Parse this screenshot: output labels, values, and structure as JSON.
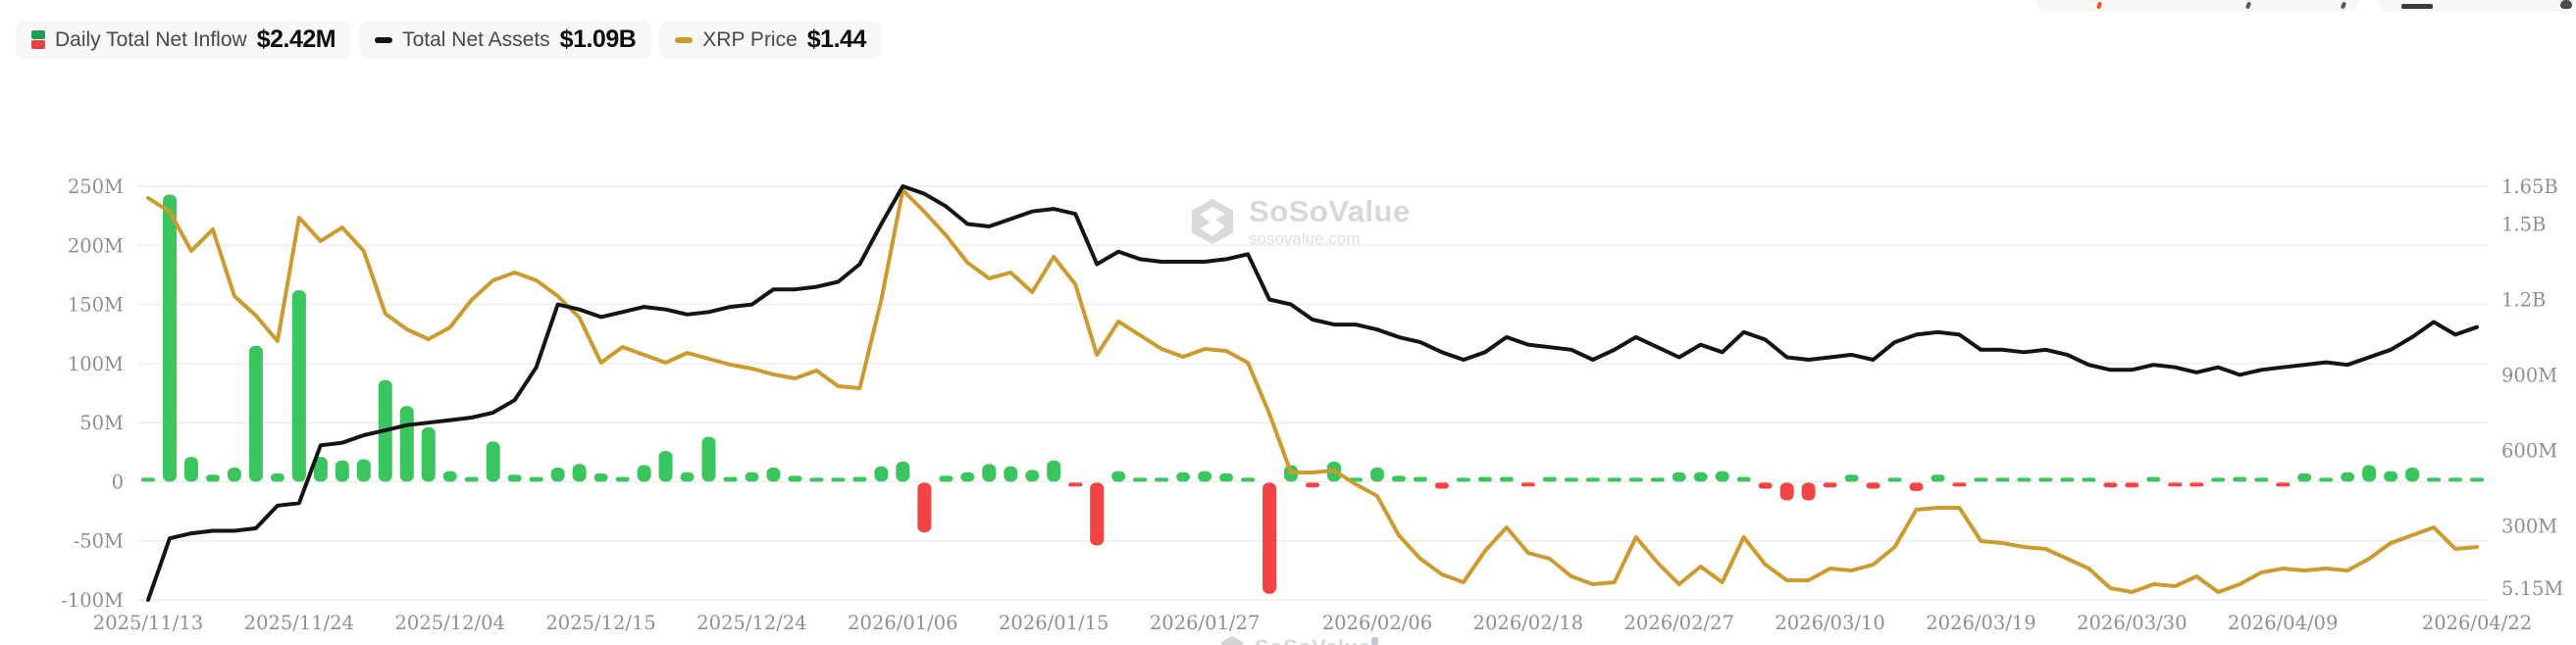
{
  "legend": {
    "items": [
      {
        "id": "daily-net-inflow",
        "label": "Daily Total Net Inflow",
        "value": "$2.42M",
        "swatch": "split-green-red"
      },
      {
        "id": "total-net-assets",
        "label": "Total Net Assets",
        "value": "$1.09B",
        "swatch": "black-line"
      },
      {
        "id": "xrp-price",
        "label": "XRP Price",
        "value": "$1.44",
        "swatch": "orange-line"
      }
    ]
  },
  "watermark": {
    "brand": "SoSoValue",
    "domain": "sosovalue.com"
  },
  "colors": {
    "bar_positive": "#3bc55e",
    "bar_negative": "#f34444",
    "legend_green": "#1f9e54",
    "legend_red": "#e74040",
    "assets_line": "#141414",
    "price_line": "#cd9a2e",
    "gridline": "#ececec",
    "axis_text": "#8f8f8f"
  },
  "chart_data": {
    "type": "combo",
    "series": [
      {
        "name": "Daily Total Net Inflow",
        "type": "bar",
        "axis": "left",
        "unit": "USD M",
        "values_key": "inflow_musd"
      },
      {
        "name": "Total Net Assets",
        "type": "line",
        "axis": "right",
        "unit": "USD B",
        "values_key": "assets_busd"
      },
      {
        "name": "XRP Price",
        "type": "line",
        "axis": "hidden",
        "unit": "USD",
        "values_key": "price_usd"
      }
    ],
    "left_axis": {
      "min": -100,
      "max": 250,
      "tick_values": [
        250,
        200,
        150,
        100,
        50,
        0,
        -50,
        -100
      ],
      "tick_labels": [
        "250M",
        "200M",
        "150M",
        "100M",
        "50M",
        "0",
        "-50M",
        "-100M"
      ]
    },
    "right_axis": {
      "min": 5.15,
      "max": 1650,
      "tick_values": [
        1650,
        1500,
        1200,
        900,
        600,
        300,
        5.15
      ],
      "tick_labels": [
        "1.65B",
        "1.5B",
        "1.2B",
        "900M",
        "600M",
        "300M",
        "5.15M"
      ]
    },
    "price_axis": {
      "min": 1.17,
      "max": 3.28,
      "visible": false
    },
    "x_tick_indices": [
      0,
      7,
      14,
      21,
      28,
      35,
      42,
      49,
      57,
      64,
      71,
      78,
      85,
      92,
      99,
      108
    ],
    "x_tick_labels": [
      "2025/11/13",
      "2025/11/24",
      "2025/12/04",
      "2025/12/15",
      "2025/12/24",
      "2026/01/06",
      "2026/01/15",
      "2026/01/27",
      "2026/02/06",
      "2026/02/18",
      "2026/02/27",
      "2026/03/10",
      "2026/03/19",
      "2026/03/30",
      "2026/04/09",
      "2026/04/22"
    ],
    "dates": [
      "2025/11/13",
      "2025/11/14",
      "2025/11/17",
      "2025/11/18",
      "2025/11/19",
      "2025/11/20",
      "2025/11/21",
      "2025/11/24",
      "2025/11/25",
      "2025/11/26",
      "2025/11/28",
      "2025/12/01",
      "2025/12/02",
      "2025/12/03",
      "2025/12/04",
      "2025/12/05",
      "2025/12/08",
      "2025/12/09",
      "2025/12/10",
      "2025/12/11",
      "2025/12/12",
      "2025/12/15",
      "2025/12/16",
      "2025/12/17",
      "2025/12/18",
      "2025/12/19",
      "2025/12/22",
      "2025/12/23",
      "2025/12/24",
      "2025/12/26",
      "2025/12/29",
      "2025/12/30",
      "2025/12/31",
      "2026/01/02",
      "2026/01/05",
      "2026/01/06",
      "2026/01/07",
      "2026/01/08",
      "2026/01/09",
      "2026/01/12",
      "2026/01/13",
      "2026/01/14",
      "2026/01/15",
      "2026/01/16",
      "2026/01/20",
      "2026/01/21",
      "2026/01/22",
      "2026/01/23",
      "2026/01/26",
      "2026/01/27",
      "2026/01/28",
      "2026/01/29",
      "2026/01/30",
      "2026/02/02",
      "2026/02/03",
      "2026/02/04",
      "2026/02/05",
      "2026/02/06",
      "2026/02/09",
      "2026/02/10",
      "2026/02/11",
      "2026/02/12",
      "2026/02/13",
      "2026/02/17",
      "2026/02/18",
      "2026/02/19",
      "2026/02/20",
      "2026/02/23",
      "2026/02/24",
      "2026/02/25",
      "2026/02/26",
      "2026/02/27",
      "2026/03/02",
      "2026/03/03",
      "2026/03/04",
      "2026/03/05",
      "2026/03/06",
      "2026/03/09",
      "2026/03/10",
      "2026/03/11",
      "2026/03/12",
      "2026/03/13",
      "2026/03/16",
      "2026/03/17",
      "2026/03/18",
      "2026/03/19",
      "2026/03/20",
      "2026/03/23",
      "2026/03/24",
      "2026/03/25",
      "2026/03/26",
      "2026/03/27",
      "2026/03/30",
      "2026/03/31",
      "2026/04/01",
      "2026/04/02",
      "2026/04/06",
      "2026/04/07",
      "2026/04/08",
      "2026/04/09",
      "2026/04/10",
      "2026/04/13",
      "2026/04/14",
      "2026/04/15",
      "2026/04/16",
      "2026/04/17",
      "2026/04/20",
      "2026/04/21",
      "2026/04/22"
    ],
    "inflow_musd": [
      2,
      243,
      21,
      6,
      12,
      115,
      7,
      162,
      21,
      18,
      19,
      86,
      64,
      46,
      9,
      4,
      34,
      6,
      4,
      12,
      15,
      7,
      4,
      14,
      26,
      8,
      38,
      4,
      8,
      12,
      5,
      3,
      2,
      4,
      13,
      17,
      -42,
      5,
      8,
      15,
      13,
      10,
      18,
      -2,
      -53,
      9,
      2,
      3,
      8,
      9,
      7,
      2,
      -94,
      14,
      -4,
      17,
      2,
      12,
      5,
      4,
      -5,
      2,
      4,
      4,
      -2,
      4,
      1,
      3,
      3,
      3,
      2,
      8,
      8,
      9,
      4,
      -5,
      -15,
      -15,
      -4,
      6,
      -5,
      3,
      -7,
      6,
      -1,
      1,
      3,
      1,
      3,
      2,
      3,
      -4,
      -4,
      4,
      -2,
      -1,
      0.5,
      4,
      2,
      -1,
      7,
      2,
      8,
      14,
      9,
      12,
      3,
      1,
      2.42
    ],
    "assets_busd": [
      0.005,
      0.25,
      0.27,
      0.28,
      0.28,
      0.29,
      0.38,
      0.39,
      0.62,
      0.63,
      0.66,
      0.68,
      0.7,
      0.71,
      0.72,
      0.73,
      0.75,
      0.8,
      0.93,
      1.18,
      1.16,
      1.13,
      1.15,
      1.17,
      1.16,
      1.14,
      1.15,
      1.17,
      1.18,
      1.24,
      1.24,
      1.25,
      1.27,
      1.34,
      1.5,
      1.65,
      1.62,
      1.57,
      1.5,
      1.49,
      1.52,
      1.55,
      1.56,
      1.54,
      1.34,
      1.39,
      1.36,
      1.35,
      1.35,
      1.35,
      1.36,
      1.38,
      1.2,
      1.18,
      1.12,
      1.1,
      1.1,
      1.08,
      1.05,
      1.03,
      0.99,
      0.96,
      0.99,
      1.05,
      1.02,
      1.01,
      1.0,
      0.96,
      1.0,
      1.05,
      1.01,
      0.97,
      1.02,
      0.99,
      1.07,
      1.04,
      0.97,
      0.96,
      0.97,
      0.98,
      0.96,
      1.03,
      1.06,
      1.07,
      1.06,
      1.0,
      1.0,
      0.99,
      1.0,
      0.98,
      0.94,
      0.92,
      0.92,
      0.94,
      0.93,
      0.91,
      0.93,
      0.9,
      0.92,
      0.93,
      0.94,
      0.95,
      0.94,
      0.97,
      1.0,
      1.05,
      1.11,
      1.06,
      1.09
    ],
    "price_usd": [
      3.22,
      3.15,
      2.95,
      3.06,
      2.72,
      2.62,
      2.49,
      3.12,
      3.0,
      3.07,
      2.95,
      2.63,
      2.55,
      2.5,
      2.56,
      2.7,
      2.8,
      2.84,
      2.8,
      2.72,
      2.61,
      2.38,
      2.46,
      2.42,
      2.38,
      2.43,
      2.4,
      2.37,
      2.35,
      2.32,
      2.3,
      2.34,
      2.26,
      2.25,
      2.7,
      3.26,
      3.15,
      3.03,
      2.89,
      2.81,
      2.84,
      2.74,
      2.92,
      2.78,
      2.42,
      2.59,
      2.52,
      2.45,
      2.41,
      2.45,
      2.44,
      2.38,
      2.12,
      1.82,
      1.82,
      1.83,
      1.76,
      1.7,
      1.5,
      1.38,
      1.3,
      1.26,
      1.42,
      1.54,
      1.41,
      1.38,
      1.29,
      1.25,
      1.26,
      1.49,
      1.36,
      1.25,
      1.34,
      1.26,
      1.49,
      1.35,
      1.27,
      1.27,
      1.33,
      1.32,
      1.35,
      1.44,
      1.63,
      1.64,
      1.64,
      1.47,
      1.46,
      1.44,
      1.43,
      1.38,
      1.33,
      1.23,
      1.21,
      1.25,
      1.24,
      1.29,
      1.21,
      1.25,
      1.31,
      1.33,
      1.32,
      1.33,
      1.32,
      1.38,
      1.46,
      1.5,
      1.54,
      1.43,
      1.44
    ]
  }
}
